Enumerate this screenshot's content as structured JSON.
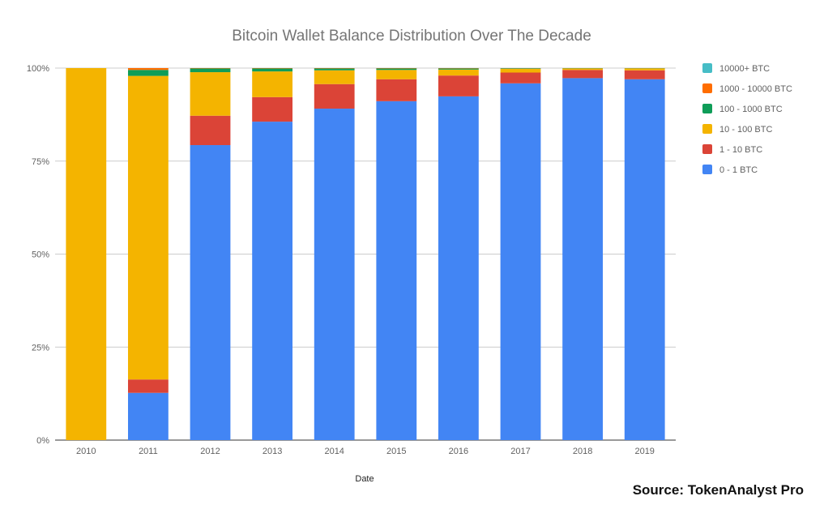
{
  "chart_data": {
    "type": "bar",
    "stacked": true,
    "title": "Bitcoin Wallet Balance Distribution Over The Decade",
    "xlabel": "Date",
    "ylabel": "",
    "ylim": [
      0,
      100
    ],
    "y_ticks": [
      "0%",
      "25%",
      "50%",
      "75%",
      "100%"
    ],
    "grid": true,
    "legend_position": "right",
    "categories": [
      "2010",
      "2011",
      "2012",
      "2013",
      "2014",
      "2015",
      "2016",
      "2017",
      "2018",
      "2019"
    ],
    "series": [
      {
        "name": "0 - 1 BTC",
        "color": "#4285f4",
        "values": [
          0,
          12.7,
          79.3,
          85.6,
          89.1,
          91.1,
          92.4,
          95.9,
          97.3,
          97.0
        ]
      },
      {
        "name": "1 - 10 BTC",
        "color": "#db4437",
        "values": [
          0,
          3.6,
          7.9,
          6.6,
          6.6,
          5.9,
          5.6,
          2.9,
          2.2,
          2.4
        ]
      },
      {
        "name": "10 - 100 BTC",
        "color": "#f4b400",
        "values": [
          100,
          81.6,
          11.7,
          6.9,
          3.7,
          2.5,
          1.6,
          1.0,
          0.4,
          0.5
        ]
      },
      {
        "name": "100 - 1000 BTC",
        "color": "#0f9d58",
        "values": [
          0,
          1.6,
          1.0,
          0.8,
          0.5,
          0.4,
          0.3,
          0.15,
          0.08,
          0.07
        ]
      },
      {
        "name": "1000 - 10000 BTC",
        "color": "#ff6d00",
        "values": [
          0,
          0.5,
          0.1,
          0.1,
          0.1,
          0.1,
          0.1,
          0.05,
          0.02,
          0.03
        ]
      },
      {
        "name": "10000+ BTC",
        "color": "#46bdc6",
        "values": [
          0,
          0,
          0,
          0,
          0,
          0,
          0,
          0,
          0,
          0
        ]
      }
    ],
    "legend_order": [
      "10000+ BTC",
      "1000 - 10000 BTC",
      "100 - 1000 BTC",
      "10 - 100 BTC",
      "1 - 10 BTC",
      "0 - 1 BTC"
    ]
  },
  "source_note": "Source: TokenAnalyst Pro",
  "colors": {
    "gridline": "#cccccc",
    "axis": "#333333"
  }
}
